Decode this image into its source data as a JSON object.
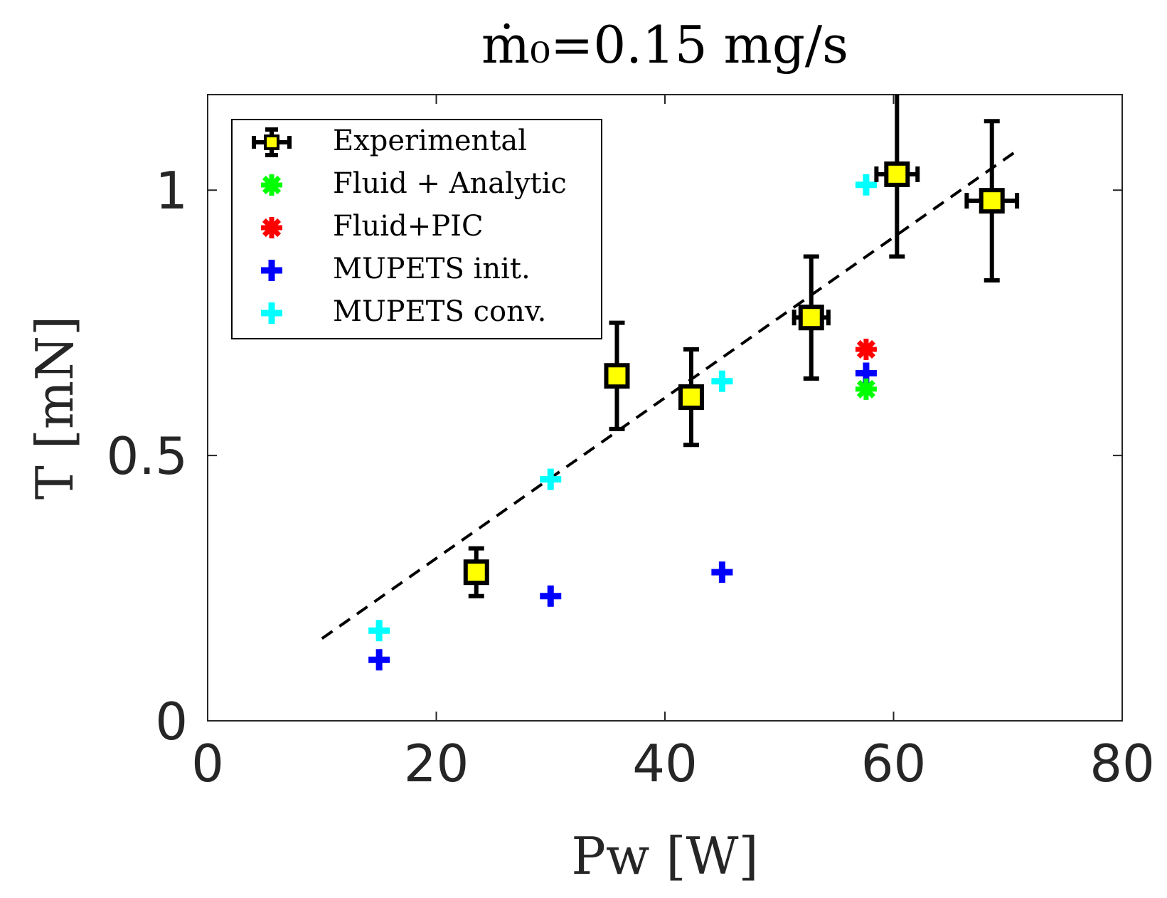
{
  "chart_data": {
    "type": "scatter",
    "title": "ṁ₀=0.15 mg/s",
    "xlabel": "Pw [W]",
    "ylabel": "T [mN]",
    "xlim": [
      0,
      80
    ],
    "ylim": [
      0,
      1.18
    ],
    "xticks": [
      0,
      20,
      40,
      60,
      80
    ],
    "xtick_labels": [
      "0",
      "20",
      "40",
      "60",
      "80"
    ],
    "yticks": [
      0,
      0.5,
      1
    ],
    "ytick_labels": [
      "0",
      "0.5",
      "1"
    ],
    "grid": false,
    "legend_position": "top-left",
    "series": [
      {
        "name": "Experimental",
        "marker": "square",
        "color": "#ffff00",
        "edge_color": "#000000",
        "points": [
          {
            "x": 23.5,
            "y": 0.28,
            "y_err": 0.045,
            "x_err": 0.5
          },
          {
            "x": 35.8,
            "y": 0.65,
            "y_err": 0.1,
            "x_err": 0.5
          },
          {
            "x": 42.3,
            "y": 0.61,
            "y_err": 0.09,
            "x_err": 0.8
          },
          {
            "x": 52.8,
            "y": 0.76,
            "y_err": 0.115,
            "x_err": 1.5
          },
          {
            "x": 60.3,
            "y": 1.03,
            "y_err": 0.155,
            "x_err": 1.8
          },
          {
            "x": 68.6,
            "y": 0.98,
            "y_err": 0.15,
            "x_err": 2.2
          }
        ]
      },
      {
        "name": "Fluid + Analytic",
        "marker": "asterisk",
        "color": "#00ff00",
        "points": [
          {
            "x": 57.6,
            "y": 0.625
          }
        ]
      },
      {
        "name": "Fluid+PIC",
        "marker": "asterisk",
        "color": "#ff0000",
        "points": [
          {
            "x": 57.6,
            "y": 0.7
          }
        ]
      },
      {
        "name": "MUPETS init.",
        "marker": "plus",
        "color": "#0000ff",
        "points": [
          {
            "x": 15.0,
            "y": 0.115
          },
          {
            "x": 30.0,
            "y": 0.235
          },
          {
            "x": 45.0,
            "y": 0.28
          },
          {
            "x": 57.6,
            "y": 0.655
          }
        ]
      },
      {
        "name": "MUPETS conv.",
        "marker": "plus",
        "color": "#00ffff",
        "points": [
          {
            "x": 15.0,
            "y": 0.17
          },
          {
            "x": 30.0,
            "y": 0.455
          },
          {
            "x": 45.0,
            "y": 0.64
          },
          {
            "x": 57.6,
            "y": 1.01
          }
        ]
      }
    ],
    "fit_line": {
      "style": "dashed",
      "color": "#000000",
      "x": [
        10,
        70.5
      ],
      "y": [
        0.155,
        1.07
      ]
    }
  }
}
